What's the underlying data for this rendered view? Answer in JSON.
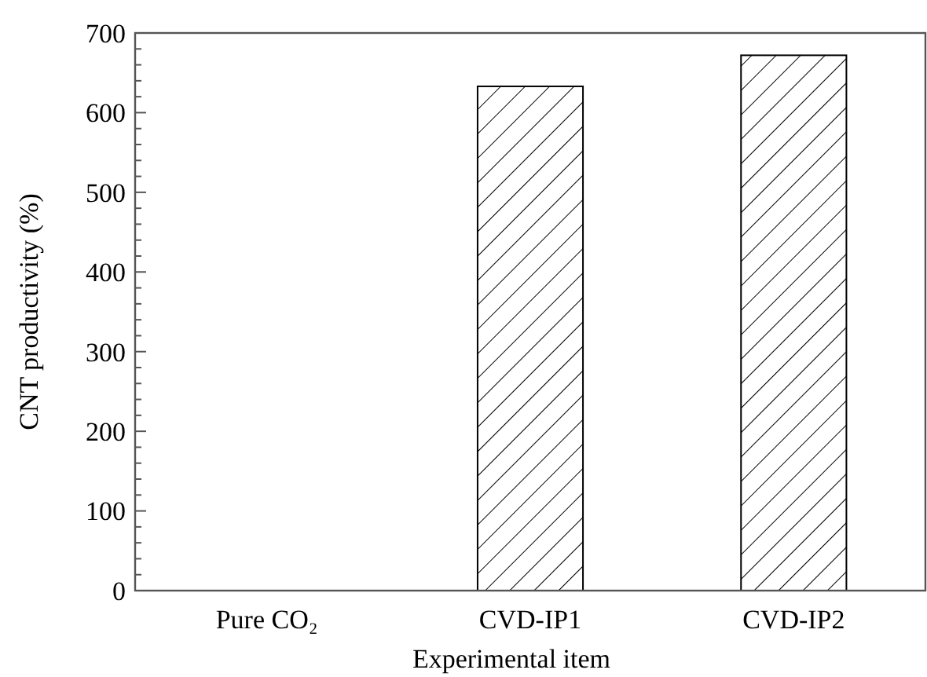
{
  "chart_data": {
    "type": "bar",
    "xlabel": "Experimental item",
    "ylabel": "CNT productivity (%)",
    "categories": [
      "Pure CO₂",
      "CVD-IP1",
      "CVD-IP2"
    ],
    "values": [
      0,
      633,
      672
    ],
    "color": "#000000",
    "ylim": [
      0,
      700
    ],
    "yticks": [
      0,
      {
        "value": 20,
        "label": null
      },
      {
        "value": 40,
        "label": null
      },
      {
        "value": 60,
        "label": null
      },
      {
        "value": 80,
        "label": null
      },
      100,
      {
        "value": 120,
        "label": null
      },
      {
        "value": 140,
        "label": null
      },
      {
        "value": 160,
        "label": null
      },
      {
        "value": 180,
        "label": null
      },
      200,
      {
        "value": 220,
        "label": null
      },
      {
        "value": 240,
        "label": null
      },
      {
        "value": 260,
        "label": null
      },
      {
        "value": 280,
        "label": null
      },
      300,
      {
        "value": 320,
        "label": null
      },
      {
        "value": 340,
        "label": null
      },
      {
        "value": 360,
        "label": null
      },
      {
        "value": 380,
        "label": null
      },
      400,
      {
        "value": 420,
        "label": null
      },
      {
        "value": 440,
        "label": null
      },
      {
        "value": 460,
        "label": null
      },
      {
        "value": 480,
        "label": null
      },
      500,
      {
        "value": 520,
        "label": null
      },
      {
        "value": 540,
        "label": null
      },
      {
        "value": 560,
        "label": null
      },
      {
        "value": 580,
        "label": null
      },
      600,
      {
        "value": 620,
        "label": null
      },
      {
        "value": 640,
        "label": null
      },
      {
        "value": 660,
        "label": null
      },
      {
        "value": 680,
        "label": null
      },
      700
    ],
    "grid": false
  }
}
